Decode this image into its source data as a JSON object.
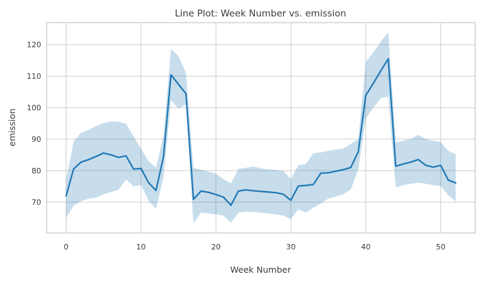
{
  "chart_data": {
    "type": "line",
    "title": "Line Plot: Week Number vs. emission",
    "xlabel": "Week Number",
    "ylabel": "emission",
    "grid": true,
    "legend": false,
    "xlim": [
      -2.6,
      54.6
    ],
    "ylim": [
      60.2,
      127.0
    ],
    "xticks": [
      0,
      10,
      20,
      30,
      40,
      50
    ],
    "yticks": [
      70,
      80,
      90,
      100,
      110,
      120
    ],
    "x": [
      0,
      1,
      2,
      3,
      4,
      5,
      6,
      7,
      8,
      9,
      10,
      11,
      12,
      13,
      14,
      15,
      16,
      17,
      18,
      19,
      20,
      21,
      22,
      23,
      24,
      25,
      26,
      27,
      28,
      29,
      30,
      31,
      32,
      33,
      34,
      35,
      36,
      37,
      38,
      39,
      40,
      41,
      42,
      43,
      44,
      45,
      46,
      47,
      48,
      49,
      50,
      51,
      52
    ],
    "series": [
      {
        "name": "emission",
        "values": [
          72.0,
          80.5,
          82.7,
          83.5,
          84.5,
          85.6,
          85.0,
          84.2,
          84.7,
          80.5,
          80.7,
          76.2,
          73.7,
          84.5,
          110.4,
          107.4,
          104.4,
          70.9,
          73.5,
          73.1,
          72.4,
          71.6,
          69.0,
          73.5,
          73.9,
          73.6,
          73.4,
          73.2,
          73.0,
          72.5,
          70.6,
          75.1,
          75.3,
          75.6,
          79.2,
          79.3,
          79.8,
          80.3,
          81.0,
          86.0,
          103.9,
          107.7,
          111.7,
          115.5,
          81.4,
          82.1,
          82.7,
          83.5,
          81.7,
          81.1,
          81.7,
          77.0,
          76.1
        ]
      }
    ],
    "band": {
      "name": "confidence-interval",
      "lower": [
        64.9,
        68.9,
        70.3,
        71.1,
        71.4,
        72.5,
        73.2,
        73.9,
        77.2,
        75.0,
        75.4,
        70.5,
        67.8,
        78.0,
        102.3,
        99.7,
        101.0,
        63.2,
        66.7,
        66.4,
        66.1,
        65.7,
        63.5,
        66.7,
        67.0,
        66.9,
        66.7,
        66.4,
        66.1,
        65.7,
        64.6,
        67.7,
        66.7,
        68.2,
        69.6,
        71.1,
        71.8,
        72.5,
        74.0,
        80.5,
        96.5,
        100.0,
        103.0,
        103.5,
        74.7,
        75.4,
        75.8,
        76.2,
        75.8,
        75.4,
        75.1,
        72.2,
        70.2
      ],
      "upper": [
        77.2,
        89.2,
        92.1,
        92.9,
        94.2,
        95.1,
        95.6,
        95.5,
        94.9,
        90.9,
        86.9,
        83.0,
        81.0,
        91.0,
        118.6,
        116.4,
        111.0,
        80.9,
        80.3,
        79.7,
        79.0,
        77.3,
        75.9,
        80.6,
        80.9,
        81.3,
        80.7,
        80.4,
        80.2,
        79.9,
        77.3,
        81.7,
        82.1,
        85.5,
        85.8,
        86.3,
        86.7,
        87.0,
        88.5,
        90.0,
        114.5,
        117.5,
        121.0,
        123.9,
        89.0,
        89.5,
        90.0,
        91.4,
        90.0,
        89.5,
        89.0,
        86.3,
        85.2
      ]
    },
    "colors": {
      "line": "#1f77b4",
      "band": "#1f77b4",
      "band_opacity": 0.25,
      "grid": "#cccccc",
      "spine": "#c6c6c6",
      "text": "#3b3b3b",
      "background": "#ffffff"
    }
  }
}
